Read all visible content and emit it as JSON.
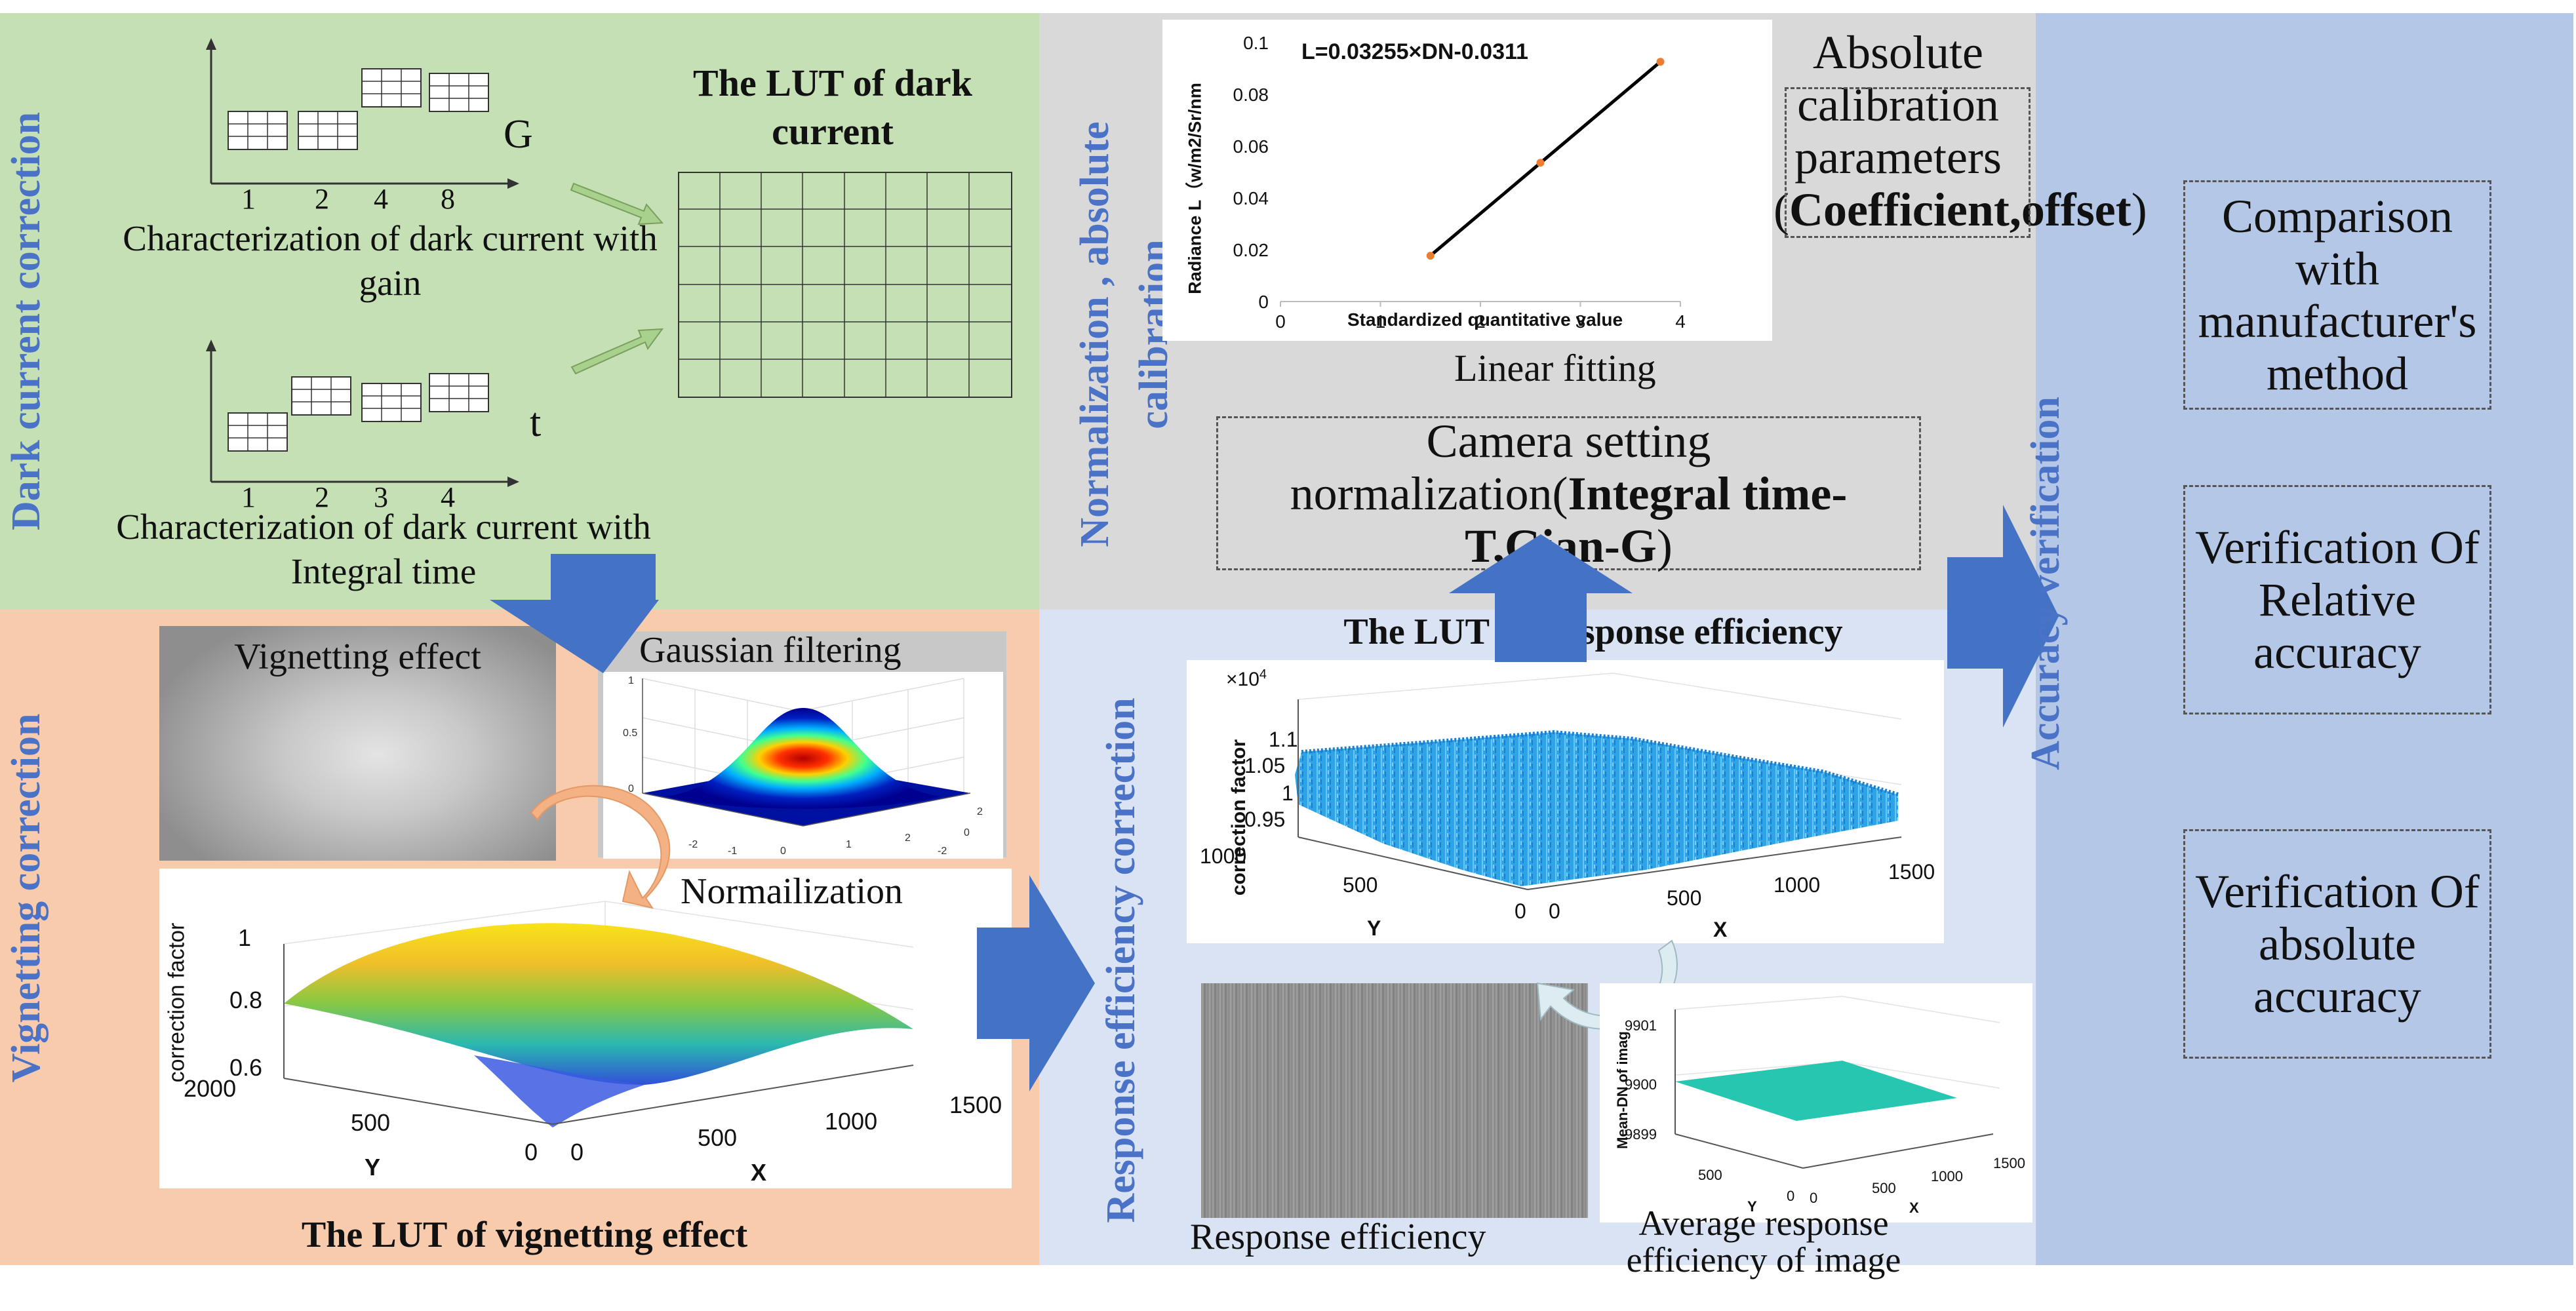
{
  "dark_current": {
    "title": "Dark current correction",
    "gain_axis_label": "G",
    "gain_ticks": [
      "1",
      "2",
      "4",
      "8"
    ],
    "gain_caption": "Characterization of dark current with gain",
    "time_axis_label": "t",
    "time_ticks": [
      "1",
      "2",
      "3",
      "4"
    ],
    "time_caption": "Characterization of dark current with Integral time",
    "lut_title": "The LUT of dark current"
  },
  "vignetting": {
    "title": "Vignetting correction",
    "effect_label": "Vignetting effect",
    "gaussian_label": "Gaussian filtering",
    "normalization_label": "Normailization",
    "lut_title": "The LUT of vignetting effect",
    "plot": {
      "zlabel": "correction factor",
      "z_ticks": [
        "1",
        "0.8",
        "0.6"
      ],
      "y_ticks": [
        "2000",
        "500",
        "0"
      ],
      "x_ticks": [
        "0",
        "500",
        "1000",
        "1500"
      ],
      "xlabel": "X",
      "ylabel": "Y"
    },
    "gaussian_axes": {
      "z_ticks": [
        "1",
        "0.5",
        "0"
      ],
      "x_ticks": [
        "-2",
        "-1",
        "0",
        "1",
        "2"
      ],
      "y_ticks": [
        "2",
        "0",
        "-2"
      ]
    }
  },
  "calibration": {
    "title": "Normalization , absolute calibration",
    "fit_caption": "Linear fitting",
    "params_prefix": "Absolute calibration parameters (",
    "params_bold": "Coefficient,offset",
    "params_suffix": ")",
    "norm_prefix": "Camera setting normalization(",
    "norm_bold": "Integral time-T,Gian-G",
    "norm_suffix": ")",
    "chart_data": {
      "type": "scatter",
      "title": "L=0.03255×DN-0.0311",
      "xlabel": "Standardized quantitative value",
      "ylabel": "Radiance L（w/m2/Sr/nm",
      "xlim": [
        0,
        4
      ],
      "ylim": [
        0,
        0.1
      ],
      "x_ticks": [
        "0",
        "1",
        "2",
        "3",
        "4"
      ],
      "y_ticks": [
        "0",
        "0.02",
        "0.04",
        "0.06",
        "0.08",
        "0.1"
      ],
      "points": [
        {
          "x": 1.5,
          "y": 0.0177
        },
        {
          "x": 2.6,
          "y": 0.0536
        },
        {
          "x": 3.8,
          "y": 0.0926
        }
      ],
      "fit_line": {
        "slope": 0.03255,
        "intercept": -0.0311,
        "x_range": [
          1.5,
          3.8
        ]
      }
    }
  },
  "response": {
    "title": "Response efficiency correction",
    "lut_title": "The LUT of Response efficiency",
    "plot": {
      "scale_label": "×10",
      "scale_exp": "4",
      "zlabel": "correction factor",
      "z_ticks": [
        "1.1",
        "1.05",
        "1",
        "0.95",
        "1000"
      ],
      "y_ticks": [
        "500",
        "0"
      ],
      "x_ticks": [
        "0",
        "500",
        "1000",
        "1500"
      ],
      "xlabel": "X",
      "ylabel": "Y"
    },
    "image_caption": "Response efficiency",
    "avg_caption": "Average response efficiency of image",
    "avg_plot": {
      "zlabel": "Mean-DN of imag",
      "z_ticks": [
        "9901",
        "9900",
        "9899"
      ],
      "y_ticks": [
        "500",
        "0"
      ],
      "x_ticks": [
        "0",
        "500",
        "1000",
        "1500"
      ],
      "xlabel": "X",
      "ylabel": "Y"
    }
  },
  "accuracy": {
    "title": "Accuracy verification",
    "boxes": [
      "Comparison with manufacturer's method",
      "Verification Of Relative accuracy",
      "Verification Of absolute accuracy"
    ]
  },
  "colors": {
    "green_panel": "#c5e0b4",
    "orange_panel": "#f8cbad",
    "gray_panel": "#d9d9d9",
    "lightblue_panel": "#dae3f3",
    "blue_panel": "#b4c7e7",
    "title_blue": "#4a72c6",
    "arrow_blue": "#4472c4"
  }
}
